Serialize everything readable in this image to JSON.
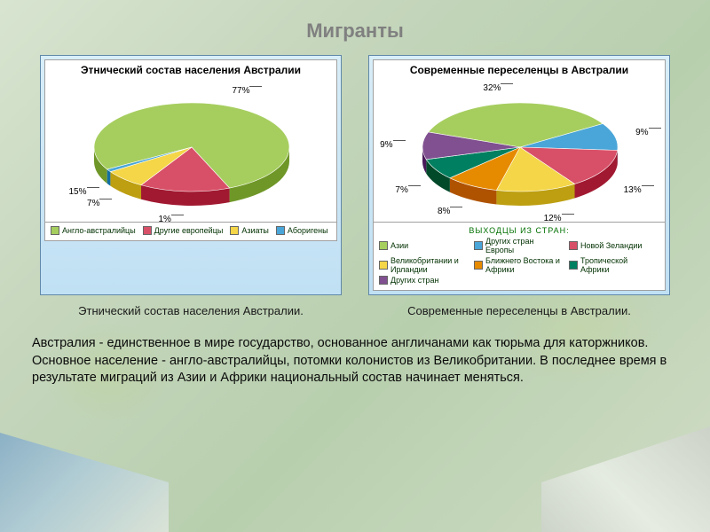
{
  "title": "Мигранты",
  "body_text": "Австралия - единственное в мире государство, основанное англичанами как тюрьма для каторжников. Основное население - англо-австралийцы, потомки колонистов из Великобритании. В последнее время в результате миграций из Азии и Африки национальный состав  начинает меняться.",
  "chart_left": {
    "type": "pie-3d",
    "title": "Этнический состав населения Австралии",
    "caption": "Этнический состав населения Австралии.",
    "background_color": "#ffffff",
    "box_gradient": [
      "#d8eef8",
      "#c0e0f4"
    ],
    "tilt_deg": 55,
    "slices": [
      {
        "label": "Англо-австралийцы",
        "pct": 77,
        "color": "#a6ce5f"
      },
      {
        "label": "Другие европейцы",
        "pct": 15,
        "color": "#d85068"
      },
      {
        "label": "Азиаты",
        "pct": 7,
        "color": "#f4d648"
      },
      {
        "label": "Аборигены",
        "pct": 1,
        "color": "#4aa6d8"
      }
    ],
    "pct_labels": [
      "77%",
      "1%",
      "7%",
      "15%"
    ],
    "label_fontsize": 10,
    "title_fontsize": 12
  },
  "chart_right": {
    "type": "pie-3d",
    "title": "Современные переселенцы в Австралии",
    "caption": "Современные переселенцы в Австралии.",
    "legend_header": "ВЫХОДЦЫ ИЗ СТРАН:",
    "background_color": "#ffffff",
    "tilt_deg": 55,
    "slices": [
      {
        "label": "Азии",
        "pct": 32,
        "color": "#a6ce5f"
      },
      {
        "label": "Других стран Европы",
        "pct": 9,
        "color": "#4aa6d8"
      },
      {
        "label": "Новой Зеландии",
        "pct": 13,
        "color": "#d85068"
      },
      {
        "label": "Великобритании и Ирландии",
        "pct": 12,
        "color": "#f4d648"
      },
      {
        "label": "Ближнего Востока и Африки",
        "pct": 8,
        "color": "#e68a00"
      },
      {
        "label": "Тропической Африки",
        "pct": 7,
        "color": "#008060"
      },
      {
        "label": "Других стран",
        "pct": 9,
        "color": "#805090"
      }
    ],
    "pct_labels": [
      "32%",
      "9%",
      "13%",
      "12%",
      "8%",
      "7%",
      "9%"
    ],
    "label_fontsize": 10,
    "title_fontsize": 12
  },
  "colors": {
    "title": "#808080",
    "page_bg_gradient": [
      "#d8e4d0",
      "#c5d6bc",
      "#b8cfae",
      "#cfdcc5"
    ],
    "chart_border": "#6088a8"
  },
  "typography": {
    "title_fontsize": 22,
    "body_fontsize": 14.5,
    "caption_fontsize": 13,
    "font_family": "Arial"
  }
}
